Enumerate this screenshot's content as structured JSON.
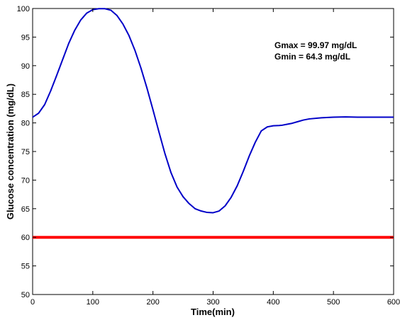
{
  "chart_data": {
    "type": "line",
    "title": "",
    "xlabel": "Time(min)",
    "ylabel": "Glucose concentration (mg/dL)",
    "xlim": [
      0,
      600
    ],
    "ylim": [
      50,
      100
    ],
    "xticks": [
      0,
      100,
      200,
      300,
      400,
      500,
      600
    ],
    "yticks": [
      50,
      55,
      60,
      65,
      70,
      75,
      80,
      85,
      90,
      95,
      100
    ],
    "grid": false,
    "legend": "none",
    "annotations": [
      "Gmax = 99.97 mg/dL",
      "Gmin = 64.3 mg/dL"
    ],
    "series": [
      {
        "color": "#0000c8",
        "x": [
          0,
          10,
          20,
          30,
          40,
          50,
          60,
          70,
          80,
          90,
          100,
          110,
          120,
          130,
          140,
          150,
          160,
          170,
          180,
          190,
          200,
          210,
          220,
          230,
          240,
          250,
          260,
          270,
          280,
          290,
          300,
          310,
          320,
          330,
          340,
          350,
          360,
          370,
          380,
          390,
          400,
          410,
          415,
          420,
          430,
          440,
          450,
          460,
          480,
          500,
          520,
          540,
          560,
          580,
          600
        ],
        "y": [
          81,
          81.7,
          83.2,
          85.6,
          88.3,
          91.1,
          93.9,
          96.2,
          98.0,
          99.2,
          99.8,
          99.97,
          99.97,
          99.7,
          98.8,
          97.3,
          95.3,
          92.7,
          89.6,
          86.1,
          82.3,
          78.4,
          74.6,
          71.3,
          68.8,
          67.1,
          65.9,
          65.0,
          64.6,
          64.35,
          64.3,
          64.6,
          65.5,
          67.0,
          69.0,
          71.5,
          74.2,
          76.6,
          78.6,
          79.3,
          79.5,
          79.55,
          79.6,
          79.7,
          79.9,
          80.2,
          80.5,
          80.7,
          80.9,
          81.0,
          81.05,
          81.0,
          81.0,
          81.0,
          81.0
        ]
      },
      {
        "color": "#ff0000",
        "x": [
          0,
          600
        ],
        "y": [
          60,
          60
        ]
      }
    ]
  }
}
